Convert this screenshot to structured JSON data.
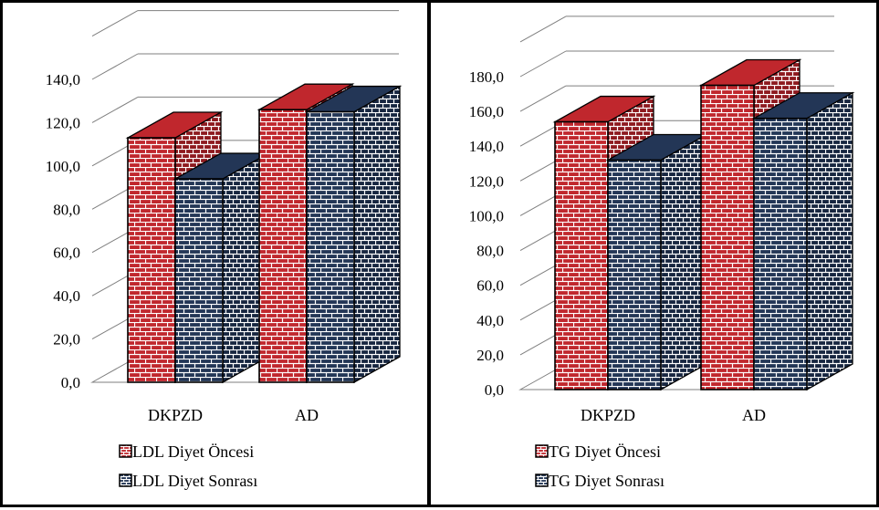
{
  "colors": {
    "red_face": "#c0272d",
    "red_mortar": "#ffffff",
    "navy_face": "#233656",
    "navy_mortar": "#ffffff",
    "grid": "#7f7f7f",
    "outline": "#000000"
  },
  "chart_data": [
    {
      "type": "bar",
      "title": "",
      "xlabel": "",
      "ylabel": "",
      "categories": [
        "DKPZD",
        "AD"
      ],
      "series": [
        {
          "name": "LDL Diyet Öncesi",
          "values": [
            113,
            126
          ],
          "color": "#c0272d"
        },
        {
          "name": "LDL Diyet Sonrası",
          "values": [
            94,
            125
          ],
          "color": "#233656"
        }
      ],
      "ylim": [
        0,
        140
      ],
      "ytick_step": 20,
      "ytick_labels": [
        "0,0",
        "20,0",
        "40,0",
        "60,0",
        "80,0",
        "100,0",
        "120,0",
        "140,0"
      ],
      "grid": true,
      "legend_position": "bottom",
      "style": "3d-clustered-bar-brick-pattern"
    },
    {
      "type": "bar",
      "title": "",
      "xlabel": "",
      "ylabel": "",
      "categories": [
        "DKPZD",
        "AD"
      ],
      "series": [
        {
          "name": "TG Diyet Öncesi",
          "values": [
            154,
            175
          ],
          "color": "#c0272d"
        },
        {
          "name": "TG Diyet Sonrası",
          "values": [
            132,
            156
          ],
          "color": "#233656"
        }
      ],
      "ylim": [
        0,
        180
      ],
      "ytick_step": 20,
      "ytick_labels": [
        "0,0",
        "20,0",
        "40,0",
        "60,0",
        "80,0",
        "100,0",
        "120,0",
        "140,0",
        "160,0",
        "180,0"
      ],
      "grid": true,
      "legend_position": "bottom",
      "style": "3d-clustered-bar-brick-pattern"
    }
  ]
}
